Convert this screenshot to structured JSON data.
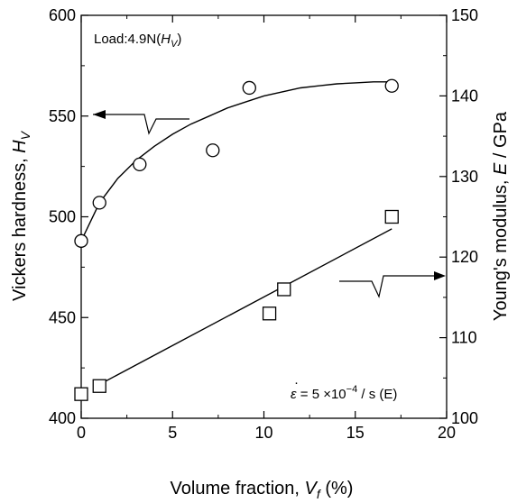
{
  "chart_data": {
    "type": "scatter",
    "x_axis": {
      "label": "Volume fraction,",
      "label_var": "V",
      "label_sub": "f",
      "label_unit": " (%)",
      "range": [
        0,
        20
      ],
      "ticks": [
        "0",
        "5",
        "10",
        "15",
        "20"
      ]
    },
    "y_left": {
      "label": "Vickers hardness,",
      "label_var": "H",
      "label_sub": "V",
      "range": [
        400,
        600
      ],
      "ticks": [
        "400",
        "450",
        "500",
        "550",
        "600"
      ]
    },
    "y_right": {
      "label": "Young's modulus,",
      "label_var": "E",
      "label_unit": " / GPa",
      "range": [
        100,
        150
      ],
      "ticks": [
        "100",
        "110",
        "120",
        "130",
        "140",
        "150"
      ]
    },
    "series": [
      {
        "marker": "circle",
        "axis": "left",
        "points": [
          [
            0,
            488
          ],
          [
            1,
            507
          ],
          [
            3.2,
            526
          ],
          [
            7.2,
            533
          ],
          [
            9.2,
            564
          ],
          [
            17,
            565
          ]
        ],
        "fit_curve": [
          [
            0,
            488
          ],
          [
            1,
            507
          ],
          [
            2,
            519
          ],
          [
            3,
            528
          ],
          [
            4,
            535
          ],
          [
            5,
            541
          ],
          [
            6,
            546
          ],
          [
            7,
            550
          ],
          [
            8,
            554
          ],
          [
            9,
            557
          ],
          [
            10,
            560
          ],
          [
            11,
            562
          ],
          [
            12,
            564
          ],
          [
            13,
            565
          ],
          [
            14,
            566
          ],
          [
            15,
            566.5
          ],
          [
            16,
            567
          ],
          [
            17,
            567
          ]
        ]
      },
      {
        "marker": "square",
        "axis": "right",
        "points": [
          [
            0,
            103
          ],
          [
            1,
            104
          ],
          [
            10.3,
            113
          ],
          [
            11.1,
            116
          ],
          [
            17,
            125
          ]
        ],
        "fit_line": [
          [
            1,
            104.2
          ],
          [
            17,
            123.5
          ]
        ]
      }
    ],
    "annotations": {
      "load": "Load:4.9N(",
      "load_var": "H",
      "load_sub": "V",
      "load_close": ")",
      "strain_rate": "ε",
      "strain_rate_dot": "·",
      "strain_rate_eq": " = 5 ×10",
      "strain_rate_exp": "−4",
      "strain_rate_tail": " / s (E)"
    }
  }
}
